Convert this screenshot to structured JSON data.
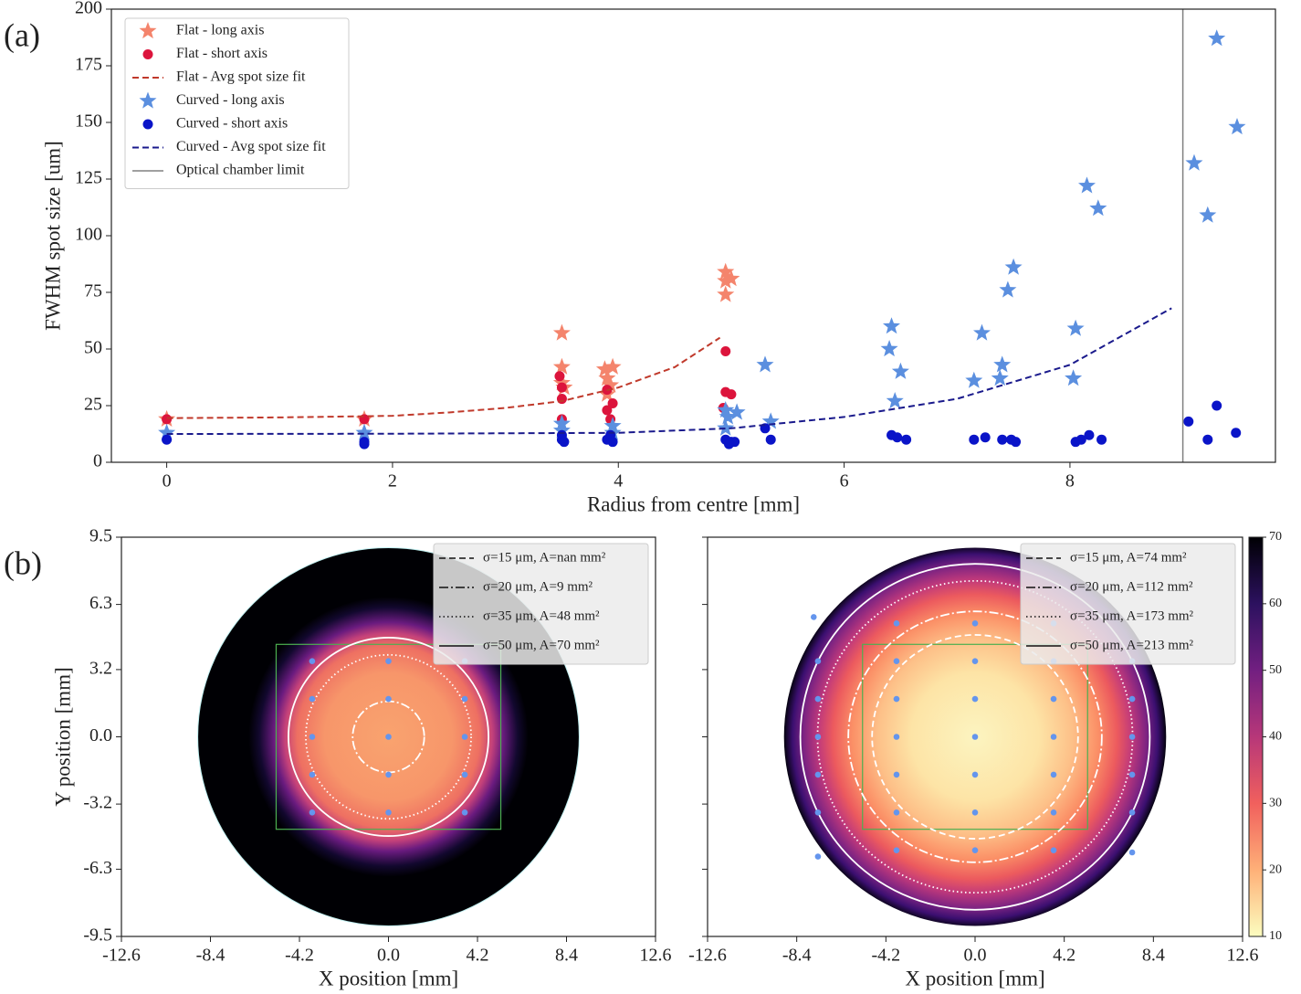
{
  "chart_data": [
    {
      "type": "scatter",
      "label": "(a)",
      "xlabel": "Radius from centre [mm]",
      "ylabel": "FWHM spot size [um]",
      "xlim": [
        -0.49,
        9.82
      ],
      "ylim": [
        0,
        200
      ],
      "xticks": [
        0,
        2,
        4,
        6,
        8
      ],
      "yticks": [
        0,
        25,
        50,
        75,
        100,
        125,
        150,
        175,
        200
      ],
      "legend": "upper left",
      "series": [
        {
          "name": "Flat - long axis",
          "color": "#f4846c",
          "marker": "star",
          "x": [
            0,
            1.75,
            3.5,
            3.5,
            3.5,
            3.52,
            3.88,
            3.95,
            3.9,
            3.93,
            3.9,
            4.95,
            4.95,
            5.0,
            4.95
          ],
          "values": [
            19,
            19,
            57,
            42,
            35,
            33,
            41,
            42,
            37,
            34,
            30,
            84,
            80,
            81,
            74
          ]
        },
        {
          "name": "Flat - short axis",
          "color": "#dc143c",
          "marker": "circle",
          "x": [
            0,
            1.75,
            3.48,
            3.5,
            3.5,
            3.5,
            3.9,
            3.95,
            3.9,
            3.93,
            4.95,
            4.95,
            5.0,
            4.93
          ],
          "values": [
            19,
            19,
            38,
            33,
            28,
            19,
            32,
            26,
            23,
            19,
            49,
            31,
            30,
            24
          ]
        },
        {
          "name": "Flat - Avg spot size fit",
          "color": "#c0392b",
          "style": "dashed",
          "x": [
            0,
            1,
            2,
            2.5,
            3,
            3.5,
            4,
            4.5,
            4.9
          ],
          "values": [
            19.5,
            19.8,
            20.5,
            22,
            24,
            27,
            33,
            42,
            55
          ]
        },
        {
          "name": "Curved - long axis",
          "color": "#5b8fdf",
          "marker": "star",
          "x": [
            0,
            1.75,
            3.5,
            3.5,
            3.95,
            3.95,
            4.95,
            4.97,
            4.95,
            5.05,
            5.3,
            5.35,
            6.42,
            6.4,
            6.5,
            6.45,
            7.15,
            7.22,
            7.4,
            7.45,
            7.5,
            7.38,
            8.05,
            8.03,
            8.15,
            8.25,
            9.1,
            9.22,
            9.3,
            9.48
          ],
          "values": [
            13,
            13,
            17,
            14,
            16,
            13,
            23,
            20,
            15,
            22,
            43,
            18,
            60,
            50,
            40,
            27,
            36,
            57,
            43,
            76,
            86,
            37,
            59,
            37,
            122,
            112,
            132,
            109,
            187,
            148
          ]
        },
        {
          "name": "Curved - short axis",
          "color": "#0a14c8",
          "marker": "circle",
          "x": [
            0,
            1.75,
            1.75,
            3.5,
            3.5,
            3.52,
            3.93,
            3.9,
            3.95,
            4.95,
            5.0,
            5.03,
            4.98,
            5.3,
            5.35,
            6.42,
            6.47,
            6.55,
            7.15,
            7.25,
            7.4,
            7.48,
            7.52,
            8.05,
            8.1,
            8.17,
            8.28,
            9.05,
            9.22,
            9.3,
            9.47
          ],
          "values": [
            10,
            9,
            8,
            12,
            10,
            9,
            12,
            10,
            9,
            10,
            9,
            9,
            8,
            15,
            10,
            12,
            11,
            10,
            10,
            11,
            10,
            10,
            9,
            9,
            10,
            12,
            10,
            18,
            10,
            25,
            13
          ]
        },
        {
          "name": "Curved - Avg spot size fit",
          "color": "#1a1a8c",
          "style": "dashed",
          "x": [
            0,
            2,
            4,
            5,
            6,
            7,
            8,
            8.9
          ],
          "values": [
            12.5,
            12.6,
            13,
            15,
            20,
            28,
            43,
            68
          ]
        },
        {
          "name": "Optical chamber limit",
          "color": "#808080",
          "style": "vline",
          "x": [
            9.0
          ]
        }
      ]
    },
    {
      "type": "heatmap",
      "label": "(b)",
      "xlabel": "X position [mm]",
      "ylabel": "Y position [mm]",
      "xlim": [
        -12.6,
        12.6
      ],
      "ylim": [
        -9.5,
        9.5
      ],
      "xticks": [
        -12.6,
        -8.4,
        -4.2,
        {
          "value": 0,
          "label": "0.0"
        },
        4.2,
        8.4,
        12.6
      ],
      "yticks": [
        -9.5,
        -6.3,
        -3.2,
        {
          "value": 0,
          "label": "0.0"
        },
        3.2,
        6.3,
        9.5
      ],
      "disc_radius": 9.0,
      "gradient": [
        {
          "r": 0,
          "color": "#f9a36f"
        },
        {
          "r": 3.0,
          "color": "#f7966a"
        },
        {
          "r": 4.3,
          "color": "#ee7062"
        },
        {
          "r": 4.9,
          "color": "#c4417a"
        },
        {
          "r": 5.4,
          "color": "#6a1b7f"
        },
        {
          "r": 6.1,
          "color": "#12082e"
        },
        {
          "r": 6.6,
          "color": "#000004"
        },
        {
          "r": 9.0,
          "color": "#000004"
        }
      ],
      "region": {
        "color": "#4caf50",
        "x": [
          -5.3,
          5.3
        ],
        "y": [
          -4.4,
          4.4
        ]
      },
      "points": {
        "color": "#6495ed",
        "x": [
          -3.6,
          -3.6,
          -3.6,
          -3.6,
          -3.6,
          0,
          0,
          0,
          0,
          0,
          3.6,
          3.6,
          3.6,
          3.6,
          3.6
        ],
        "values": [
          3.6,
          1.8,
          0,
          -1.8,
          -3.6,
          3.6,
          1.8,
          0,
          -1.8,
          -3.6,
          3.6,
          1.8,
          0,
          -1.8,
          -3.6
        ]
      },
      "legend": "upper right",
      "contours": [
        {
          "name": "σ=15 μm, A=nan mm²",
          "style": "dashed",
          "radius": null
        },
        {
          "name": "σ=20 μm, A=9 mm²",
          "style": "dashdot",
          "radius": 1.69
        },
        {
          "name": "σ=35 μm, A=48 mm²",
          "style": "dotted",
          "radius": 3.9
        },
        {
          "name": "σ=50 μm, A=70 mm²",
          "style": "solid",
          "radius": 4.72
        }
      ]
    },
    {
      "type": "heatmap",
      "xlabel": "X position [mm]",
      "xlim": [
        -12.6,
        12.6
      ],
      "ylim": [
        -9.5,
        9.5
      ],
      "xticks": [
        -12.6,
        -8.4,
        -4.2,
        {
          "value": 0,
          "label": "0.0"
        },
        4.2,
        8.4,
        12.6
      ],
      "yticks": [
        -9.5,
        -6.3,
        -3.2,
        0,
        3.2,
        6.3,
        9.5
      ],
      "disc_radius": 9.0,
      "gradient": [
        {
          "r": 0,
          "color": "#fcf4c0"
        },
        {
          "r": 3.0,
          "color": "#fde4a6"
        },
        {
          "r": 4.6,
          "color": "#fdc088"
        },
        {
          "r": 5.8,
          "color": "#fb8f66"
        },
        {
          "r": 6.7,
          "color": "#ec5a5e"
        },
        {
          "r": 7.4,
          "color": "#c0397b"
        },
        {
          "r": 8.1,
          "color": "#7b2382"
        },
        {
          "r": 8.6,
          "color": "#3b0f70"
        },
        {
          "r": 9.0,
          "color": "#05030f"
        }
      ],
      "region": {
        "color": "#4caf50",
        "x": [
          -5.3,
          5.3
        ],
        "y": [
          -4.4,
          4.4
        ]
      },
      "points": {
        "color": "#6495ed",
        "x": [
          -7.6,
          -7.4,
          -7.4,
          -7.4,
          -7.4,
          -7.4,
          -7.4,
          -3.7,
          -3.7,
          -3.7,
          -3.7,
          -3.7,
          -3.7,
          -3.7,
          0,
          0,
          0,
          0,
          0,
          0,
          0,
          3.7,
          3.7,
          3.7,
          3.7,
          3.7,
          3.7,
          3.7,
          7.4,
          7.4,
          7.4,
          7.4,
          7.4,
          7.4
        ],
        "values": [
          5.7,
          3.6,
          1.8,
          0,
          -1.8,
          -3.6,
          -5.7,
          5.4,
          3.6,
          1.8,
          0,
          -1.8,
          -3.6,
          -5.4,
          5.4,
          3.6,
          1.8,
          0,
          -1.8,
          -3.6,
          -5.4,
          5.4,
          3.6,
          1.8,
          0,
          -1.8,
          -3.6,
          -5.4,
          3.6,
          1.8,
          0,
          -1.8,
          -3.6,
          -5.5
        ]
      },
      "legend": "upper right",
      "contours": [
        {
          "name": "σ=15 μm, A=74 mm²",
          "style": "dashed",
          "radius": 4.85
        },
        {
          "name": "σ=20 μm, A=112 mm²",
          "style": "dashdot",
          "radius": 5.97
        },
        {
          "name": "σ=35 μm, A=173 mm²",
          "style": "dotted",
          "radius": 7.42
        },
        {
          "name": "σ=50 μm, A=213 mm²",
          "style": "solid",
          "radius": 8.23
        }
      ],
      "colorbar": {
        "lim": [
          10,
          70
        ],
        "ticks": [
          10,
          20,
          30,
          40,
          50,
          60,
          70
        ],
        "colors": [
          "#fcfdbf",
          "#feb078",
          "#f1605d",
          "#b73779",
          "#721f81",
          "#2c115f",
          "#000004"
        ]
      }
    }
  ]
}
